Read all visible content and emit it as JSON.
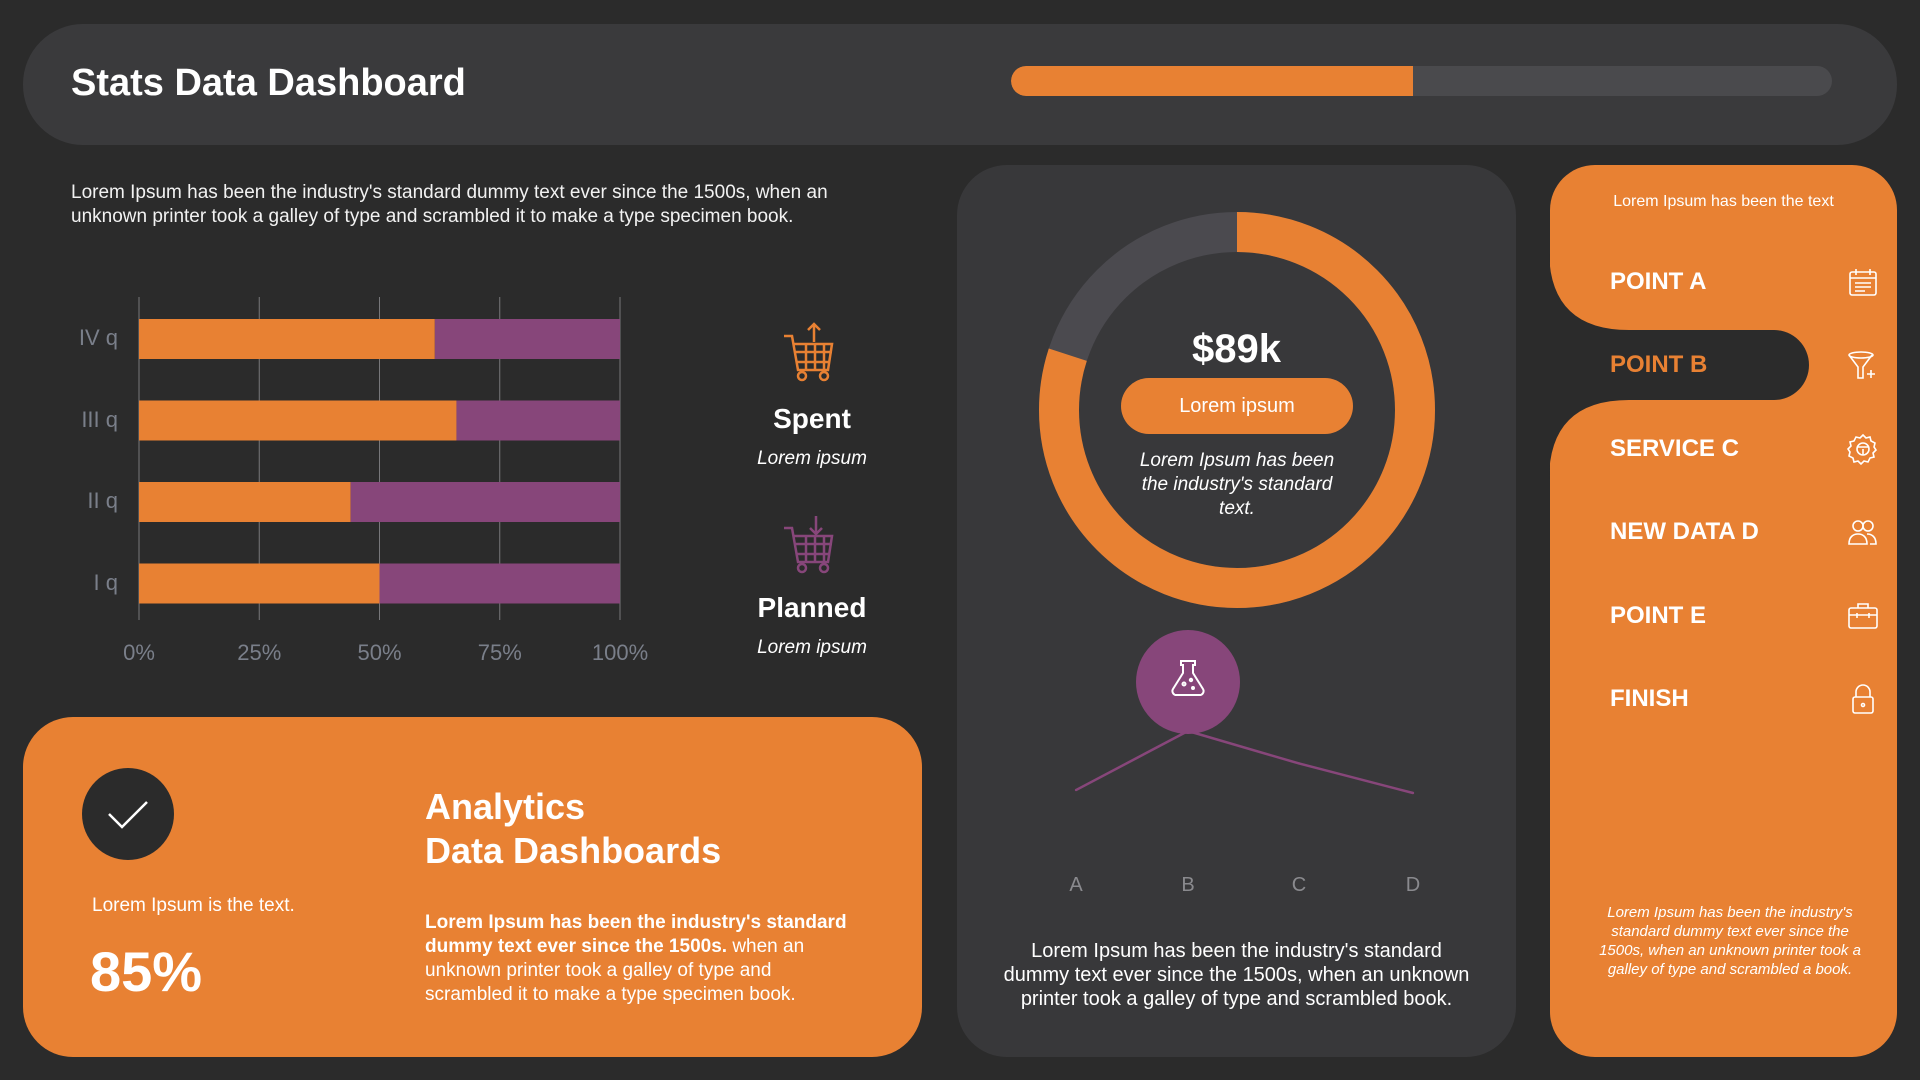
{
  "header": {
    "title": "Stats Data Dashboard",
    "progress_percent": 49
  },
  "intro": "Lorem Ipsum has been the industry's standard dummy text ever since the 1500s, when an unknown printer took a galley of type and scrambled it to make a type specimen book.",
  "colors": {
    "orange": "#e88133",
    "purple": "#87467a",
    "background": "#2b2b2b",
    "card": "#38383a"
  },
  "chart_data": [
    {
      "type": "bar",
      "orientation": "horizontal",
      "stacked": true,
      "categories": [
        "IV q",
        "III q",
        "II q",
        "I q"
      ],
      "series": [
        {
          "name": "Spent",
          "values": [
            61.5,
            66,
            44,
            50
          ],
          "color": "#e88133"
        },
        {
          "name": "Planned",
          "values": [
            38.5,
            34,
            56,
            50
          ],
          "color": "#87467a"
        }
      ],
      "xlim": [
        0,
        100
      ],
      "x_ticks": [
        "0%",
        "25%",
        "50%",
        "75%",
        "100%"
      ],
      "grid": true,
      "legend": "right"
    },
    {
      "type": "line",
      "categories": [
        "A",
        "B",
        "C",
        "D"
      ],
      "values": [
        1.0,
        3.0,
        1.9,
        0.9
      ],
      "color": "#87467a",
      "grid": false
    }
  ],
  "legend": {
    "spent": {
      "title": "Spent",
      "sub": "Lorem ipsum",
      "icon": "cart-up-icon"
    },
    "planned": {
      "title": "Planned",
      "sub": "Lorem ipsum",
      "icon": "cart-down-icon"
    }
  },
  "analytics": {
    "caption": "Lorem Ipsum is the text.",
    "percent": "85%",
    "title_line1": "Analytics",
    "title_line2": "Data Dashboards",
    "body_bold": "Lorem Ipsum has been the industry's standard dummy text ever since the 1500s.",
    "body": " when an unknown printer took a galley of type and scrambled it to make a type specimen book."
  },
  "donut": {
    "value": "$89k",
    "percent": 80,
    "button": "Lorem ipsum",
    "text": "Lorem Ipsum has been the industry's standard text."
  },
  "middle_text": "Lorem Ipsum has been the industry's standard dummy text ever since the 1500s, when an unknown printer took a galley of type and scrambled book.",
  "panel": {
    "header": "Lorem Ipsum has been the text",
    "items": [
      {
        "label": "POINT A",
        "icon": "calendar-icon"
      },
      {
        "label": "POINT B",
        "icon": "funnel-plus-icon",
        "active": true
      },
      {
        "label": "SERVICE C",
        "icon": "gear-steering-icon"
      },
      {
        "label": "NEW DATA D",
        "icon": "users-icon"
      },
      {
        "label": "POINT E",
        "icon": "toolbox-icon"
      },
      {
        "label": "FINISH",
        "icon": "lock-icon"
      }
    ],
    "footer": "Lorem Ipsum has been the industry's standard dummy text ever since the 1500s, when an unknown printer took a galley of type and scrambled  a book."
  }
}
